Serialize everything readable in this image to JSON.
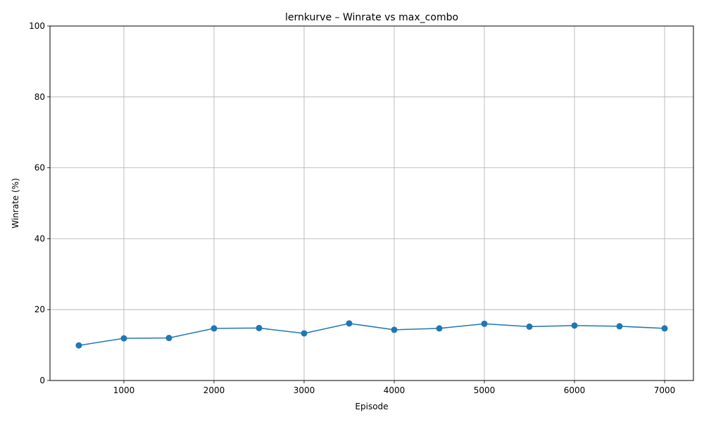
{
  "colors": {
    "series": "#1f77b4",
    "grid": "#b0b0b0",
    "axis": "#000000",
    "background": "#ffffff"
  },
  "chart_data": {
    "type": "line",
    "title": "lernkurve – Winrate vs max_combo",
    "xlabel": "Episode",
    "ylabel": "Winrate (%)",
    "xlim": [
      180,
      7320
    ],
    "ylim": [
      0,
      100
    ],
    "xticks": [
      1000,
      2000,
      3000,
      4000,
      5000,
      6000,
      7000
    ],
    "yticks": [
      0,
      20,
      40,
      60,
      80,
      100
    ],
    "grid": true,
    "marker": "circle",
    "x": [
      500,
      1000,
      1500,
      2000,
      2500,
      3000,
      3500,
      4000,
      4500,
      5000,
      5500,
      6000,
      6500,
      7000
    ],
    "series": [
      {
        "values": [
          9.9,
          11.9,
          12.0,
          14.7,
          14.8,
          13.3,
          16.1,
          14.3,
          14.7,
          16.0,
          15.2,
          15.5,
          15.3,
          14.7
        ]
      }
    ]
  }
}
